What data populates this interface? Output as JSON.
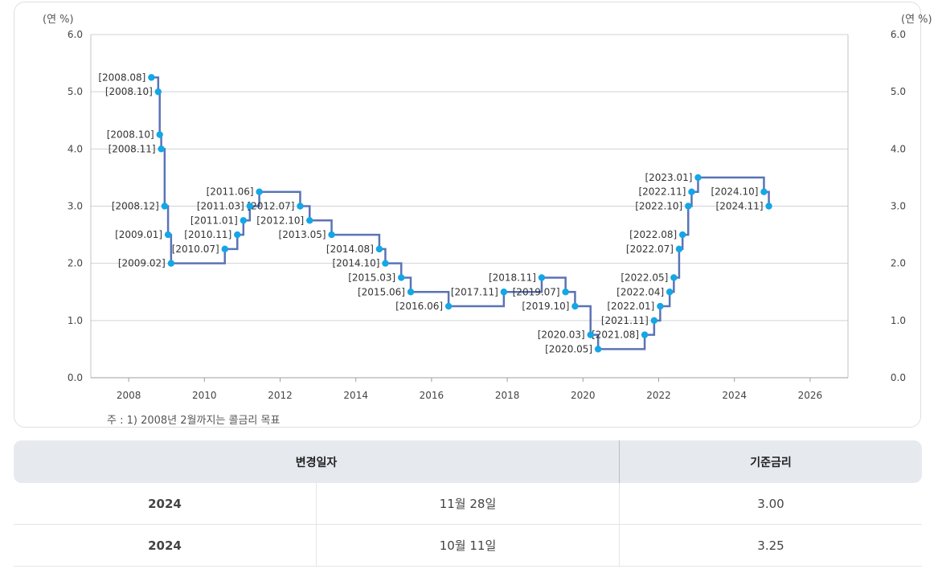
{
  "chart_data": {
    "type": "line",
    "step": true,
    "unit_label_left": "(연 %)",
    "unit_label_right": "(연 %)",
    "ylim": [
      0,
      6
    ],
    "yticks": [
      "0.0",
      "1.0",
      "2.0",
      "3.0",
      "4.0",
      "5.0",
      "6.0"
    ],
    "xlim": [
      2007,
      2027
    ],
    "xticks": [
      "2008",
      "2010",
      "2012",
      "2014",
      "2016",
      "2018",
      "2020",
      "2022",
      "2024",
      "2026"
    ],
    "grid": true,
    "line_color": "#5b73b6",
    "marker_color": "#13a7e6",
    "points": [
      {
        "label": "[2008.08]",
        "x": 2008.6,
        "y": 5.25
      },
      {
        "label": "[2008.10]",
        "x": 2008.78,
        "y": 5.0
      },
      {
        "label": "[2008.10]",
        "x": 2008.82,
        "y": 4.25
      },
      {
        "label": "[2008.11]",
        "x": 2008.86,
        "y": 4.0
      },
      {
        "label": "[2008.12]",
        "x": 2008.95,
        "y": 3.0
      },
      {
        "label": "[2009.01]",
        "x": 2009.04,
        "y": 2.5
      },
      {
        "label": "[2009.02]",
        "x": 2009.12,
        "y": 2.0
      },
      {
        "label": "[2010.07]",
        "x": 2010.54,
        "y": 2.25
      },
      {
        "label": "[2010.11]",
        "x": 2010.87,
        "y": 2.5
      },
      {
        "label": "[2011.01]",
        "x": 2011.03,
        "y": 2.75
      },
      {
        "label": "[2011.03]",
        "x": 2011.2,
        "y": 3.0
      },
      {
        "label": "[2011.06]",
        "x": 2011.45,
        "y": 3.25
      },
      {
        "label": "[2012.07]",
        "x": 2012.53,
        "y": 3.0
      },
      {
        "label": "[2012.10]",
        "x": 2012.78,
        "y": 2.75
      },
      {
        "label": "[2013.05]",
        "x": 2013.36,
        "y": 2.5
      },
      {
        "label": "[2014.08]",
        "x": 2014.62,
        "y": 2.25
      },
      {
        "label": "[2014.10]",
        "x": 2014.78,
        "y": 2.0
      },
      {
        "label": "[2015.03]",
        "x": 2015.2,
        "y": 1.75
      },
      {
        "label": "[2015.06]",
        "x": 2015.45,
        "y": 1.5
      },
      {
        "label": "[2016.06]",
        "x": 2016.45,
        "y": 1.25
      },
      {
        "label": "[2017.11]",
        "x": 2017.91,
        "y": 1.5
      },
      {
        "label": "[2018.11]",
        "x": 2018.91,
        "y": 1.75
      },
      {
        "label": "[2019.07]",
        "x": 2019.54,
        "y": 1.5
      },
      {
        "label": "[2019.10]",
        "x": 2019.79,
        "y": 1.25
      },
      {
        "label": "[2020.03]",
        "x": 2020.2,
        "y": 0.75
      },
      {
        "label": "[2020.05]",
        "x": 2020.4,
        "y": 0.5
      },
      {
        "label": "[2021.08]",
        "x": 2021.63,
        "y": 0.75
      },
      {
        "label": "[2021.11]",
        "x": 2021.88,
        "y": 1.0
      },
      {
        "label": "[2022.01]",
        "x": 2022.04,
        "y": 1.25
      },
      {
        "label": "[2022.04]",
        "x": 2022.29,
        "y": 1.5
      },
      {
        "label": "[2022.05]",
        "x": 2022.4,
        "y": 1.75
      },
      {
        "label": "[2022.07]",
        "x": 2022.54,
        "y": 2.25
      },
      {
        "label": "[2022.08]",
        "x": 2022.63,
        "y": 2.5
      },
      {
        "label": "[2022.10]",
        "x": 2022.78,
        "y": 3.0
      },
      {
        "label": "[2022.11]",
        "x": 2022.87,
        "y": 3.25
      },
      {
        "label": "[2023.01]",
        "x": 2023.04,
        "y": 3.5
      },
      {
        "label": "[2024.10]",
        "x": 2024.78,
        "y": 3.25
      },
      {
        "label": "[2024.11]",
        "x": 2024.91,
        "y": 3.0
      }
    ]
  },
  "footnote": "주 : 1) 2008년 2월까지는 콜금리 목표",
  "table": {
    "header_date": "변경일자",
    "header_rate": "기준금리",
    "rows": [
      {
        "year": "2024",
        "day": "11월 28일",
        "rate": "3.00"
      },
      {
        "year": "2024",
        "day": "10월 11일",
        "rate": "3.25"
      }
    ]
  }
}
